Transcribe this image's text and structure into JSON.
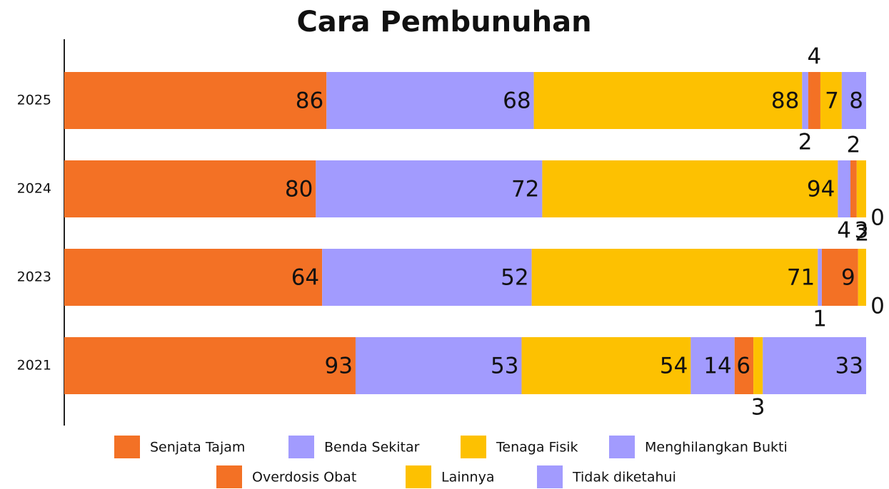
{
  "chart_data": {
    "type": "bar",
    "orientation": "horizontal",
    "stacked": true,
    "normalized": true,
    "title": "Cara Pembunuhan",
    "categories": [
      "2025",
      "2024",
      "2023",
      "2021"
    ],
    "series": [
      {
        "name": "Senjata Tajam",
        "color": "#F37125",
        "values": [
          86,
          80,
          64,
          93
        ]
      },
      {
        "name": "Benda Sekitar",
        "color": "#A29BFE",
        "values": [
          68,
          72,
          52,
          53
        ]
      },
      {
        "name": "Tenaga Fisik",
        "color": "#FDC101",
        "values": [
          88,
          94,
          71,
          54
        ]
      },
      {
        "name": "Menghilangkan Bukti",
        "color": "#A29BFE",
        "values": [
          2,
          4,
          1,
          14
        ]
      },
      {
        "name": "Overdosis Obat",
        "color": "#F37125",
        "values": [
          4,
          2,
          9,
          6
        ]
      },
      {
        "name": "Lainnya",
        "color": "#FDC101",
        "values": [
          7,
          3,
          2,
          3
        ]
      },
      {
        "name": "Tidak diketahui",
        "color": "#A29BFE",
        "values": [
          8,
          0,
          0,
          33
        ]
      }
    ]
  }
}
